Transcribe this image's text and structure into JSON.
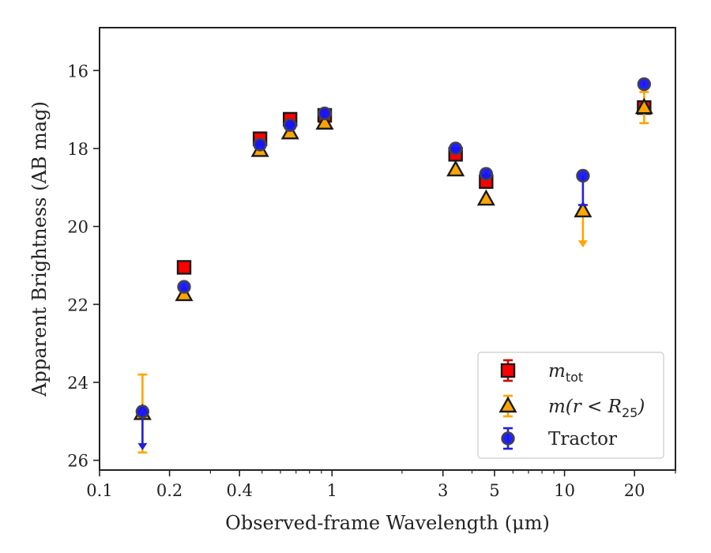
{
  "chart_data": {
    "type": "scatter",
    "xlabel": "Observed-frame Wavelength (μm)",
    "ylabel": "Apparent Brightness (AB mag)",
    "xscale": "log",
    "xlim": [
      0.1,
      30
    ],
    "ylim": [
      26.25,
      14.9
    ],
    "y_inverted": true,
    "x_ticks": [
      0.1,
      0.2,
      0.4,
      1,
      3,
      5,
      10,
      20
    ],
    "x_tick_labels": [
      "0.1",
      "0.2",
      "0.4",
      "1",
      "3",
      "5",
      "10",
      "20"
    ],
    "y_ticks": [
      16,
      18,
      20,
      22,
      24,
      26
    ],
    "y_tick_labels": [
      "16",
      "18",
      "20",
      "22",
      "24",
      "26"
    ],
    "grid": false,
    "legend_position": "bottom-right",
    "series": [
      {
        "name_base": "m",
        "name_sub": "tot",
        "marker": "square",
        "face_color": "#ff0000",
        "edge_color": "#1a1a1a",
        "errbar_color": "#d00000",
        "points": [
          {
            "x": 0.231,
            "y": 21.05,
            "err": 0.05
          },
          {
            "x": 0.49,
            "y": 17.75,
            "err": 0.05
          },
          {
            "x": 0.66,
            "y": 17.25,
            "err": 0.05
          },
          {
            "x": 0.93,
            "y": 17.15,
            "err": 0.05
          },
          {
            "x": 3.4,
            "y": 18.15,
            "err": 0.05
          },
          {
            "x": 4.6,
            "y": 18.85,
            "err": 0.05
          },
          {
            "x": 22.0,
            "y": 16.95,
            "err": 0.05
          }
        ]
      },
      {
        "name_base": "m(r < R",
        "name_sub": "25",
        "name_tail": ")",
        "marker": "triangle",
        "face_color": "#ffa500",
        "edge_color": "#1a1a1a",
        "errbar_color": "#ffa500",
        "points": [
          {
            "x": 0.153,
            "y": 24.8,
            "err_low": 1.0,
            "err_high": 1.0
          },
          {
            "x": 0.231,
            "y": 21.75,
            "err": 0.05
          },
          {
            "x": 0.49,
            "y": 18.05,
            "err": 0.05
          },
          {
            "x": 0.66,
            "y": 17.6,
            "err": 0.05
          },
          {
            "x": 0.93,
            "y": 17.35,
            "err": 0.05
          },
          {
            "x": 3.4,
            "y": 18.55,
            "err": 0.05
          },
          {
            "x": 4.6,
            "y": 19.3,
            "err": 0.05
          },
          {
            "x": 12.0,
            "y": 19.6,
            "upper_limit_to": 20.5
          },
          {
            "x": 22.0,
            "y": 16.95,
            "err_low": 0.4,
            "err_high": 0.4
          }
        ]
      },
      {
        "name": "Tractor",
        "marker": "circle",
        "face_color": "#1515ff",
        "edge_color": "#444444",
        "errbar_color": "#2020dd",
        "points": [
          {
            "x": 0.153,
            "y": 24.75,
            "upper_limit_to": 25.7
          },
          {
            "x": 0.231,
            "y": 21.55,
            "err": 0.05
          },
          {
            "x": 0.49,
            "y": 17.9,
            "err": 0.05
          },
          {
            "x": 0.66,
            "y": 17.4,
            "err": 0.05
          },
          {
            "x": 0.93,
            "y": 17.1,
            "err": 0.05
          },
          {
            "x": 3.4,
            "y": 18.0,
            "err": 0.05
          },
          {
            "x": 4.6,
            "y": 18.65,
            "err": 0.05
          },
          {
            "x": 12.0,
            "y": 18.7,
            "err_low": 0.0,
            "err_high": 0.75
          },
          {
            "x": 22.0,
            "y": 16.35,
            "err": 0.05
          }
        ]
      }
    ]
  }
}
